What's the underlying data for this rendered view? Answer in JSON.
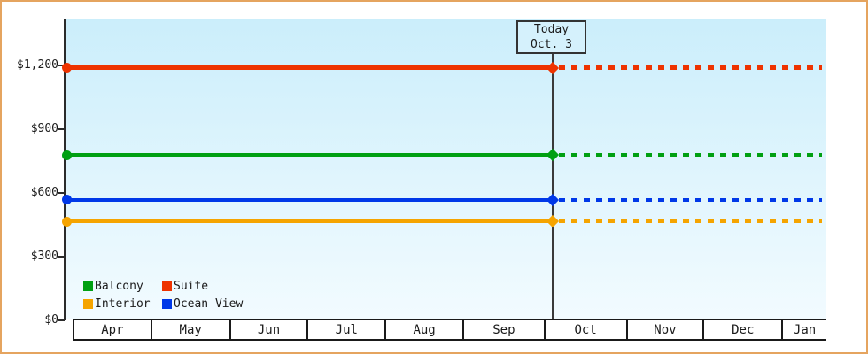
{
  "chart_data": {
    "type": "line",
    "x_categories": [
      "Apr",
      "May",
      "Jun",
      "Jul",
      "Aug",
      "Sep",
      "Oct",
      "Nov",
      "Dec",
      "Jan"
    ],
    "y_axis": {
      "ticks": [
        {
          "label": "$0",
          "value": 0
        },
        {
          "label": "$300",
          "value": 300
        },
        {
          "label": "$600",
          "value": 600
        },
        {
          "label": "$900",
          "value": 900
        },
        {
          "label": "$1,200",
          "value": 1200
        }
      ],
      "range": [
        0,
        1420
      ],
      "grid": false
    },
    "today": {
      "line1": "Today",
      "line2": "Oct. 3"
    },
    "series": [
      {
        "name": "Suite",
        "color": "#EE3300",
        "value": 1188
      },
      {
        "name": "Balcony",
        "color": "#00A012",
        "value": 779
      },
      {
        "name": "Ocean View",
        "color": "#0038E8",
        "value": 568
      },
      {
        "name": "Interior",
        "color": "#F5A400",
        "value": 466
      }
    ],
    "legend_entries": [
      {
        "label": "Balcony",
        "color": "#00A012"
      },
      {
        "label": "Suite",
        "color": "#EE3300"
      },
      {
        "label": "Interior",
        "color": "#F5A400"
      },
      {
        "label": "Ocean View",
        "color": "#0038E8"
      }
    ],
    "legend_position": "bottom-left inside plot",
    "style_note": "flat price lines: solid from Apr to today, dotted projection from today through mid-Jan; circle marker at axis, diamond marker at today line"
  },
  "colors": {
    "frame_border": "#E5A45F",
    "plot_bg_top": "#CBEEFB",
    "plot_bg_bottom": "#F2FBFF",
    "axis": "#2B2B2B",
    "text": "#1A1A1A",
    "today_line": "#3A3A3A",
    "today_box_bg": "#D5F1FC",
    "month_cell_bg": "#FFFFFF"
  }
}
